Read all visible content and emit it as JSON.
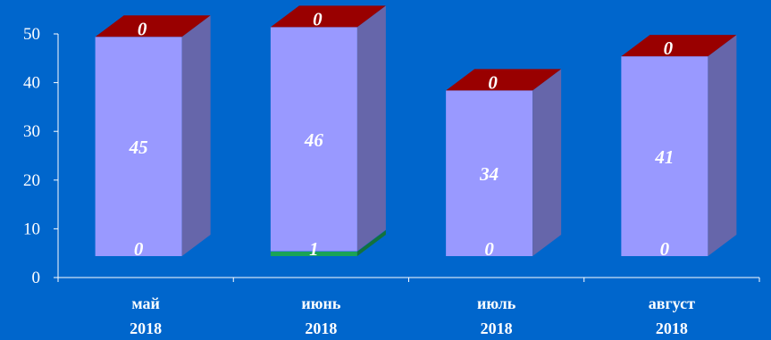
{
  "chart_data": {
    "type": "bar",
    "stacked": true,
    "three_d": true,
    "categories": [
      [
        "май",
        "2018"
      ],
      [
        "июнь",
        "2018"
      ],
      [
        "июль",
        "2018"
      ],
      [
        "август",
        "2018"
      ]
    ],
    "series": [
      {
        "values": [
          0,
          1,
          0,
          0
        ],
        "color": "#1aa356",
        "labels": [
          "0",
          "1",
          "0",
          "0"
        ]
      },
      {
        "values": [
          45,
          46,
          34,
          41
        ],
        "color": "#9999ff",
        "labels": [
          "45",
          "46",
          "34",
          "41"
        ]
      },
      {
        "values": [
          0,
          0,
          0,
          0
        ],
        "color": "#990000",
        "labels": [
          "0",
          "0",
          "0",
          "0"
        ]
      }
    ],
    "ylim": [
      0,
      50
    ],
    "yticks": [
      "0",
      "10",
      "20",
      "30",
      "40",
      "50"
    ],
    "grid": false,
    "legend": "none"
  },
  "colors": {
    "background": "#0066cc",
    "side_shade": "#6666aa",
    "top_face": "#990000",
    "axis": "#ffffff",
    "text": "#ffffff"
  }
}
